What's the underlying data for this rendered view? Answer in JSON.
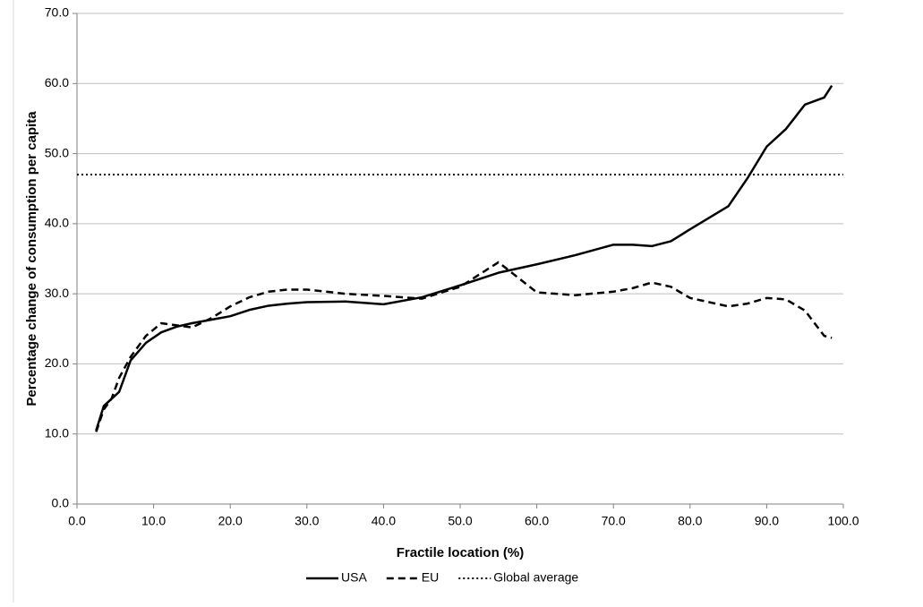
{
  "chart_data": {
    "type": "line",
    "x_label": "Fractile location (%)",
    "y_label": "Percentage change of consumption per capita",
    "xlim": [
      0,
      100
    ],
    "xticks": [
      {
        "value": 0,
        "label": "0.0"
      },
      {
        "value": 10,
        "label": "10.0"
      },
      {
        "value": 20,
        "label": "20.0"
      },
      {
        "value": 30,
        "label": "30.0"
      },
      {
        "value": 40,
        "label": "40.0"
      },
      {
        "value": 50,
        "label": "50.0"
      },
      {
        "value": 60,
        "label": "60.0"
      },
      {
        "value": 70,
        "label": "70.0"
      },
      {
        "value": 80,
        "label": "80.0"
      },
      {
        "value": 90,
        "label": "90.0"
      },
      {
        "value": 100,
        "label": "100.0"
      }
    ],
    "ylim": [
      0,
      70
    ],
    "yticks": [
      {
        "value": 0,
        "label": "0.0"
      },
      {
        "value": 10,
        "label": "10.0"
      },
      {
        "value": 20,
        "label": "20.0"
      },
      {
        "value": 30,
        "label": "30.0"
      },
      {
        "value": 40,
        "label": "40.0"
      },
      {
        "value": 50,
        "label": "50.0"
      },
      {
        "value": 60,
        "label": "60.0"
      },
      {
        "value": 70,
        "label": "70.0"
      }
    ],
    "grid": true,
    "legend": "bottom",
    "series": [
      {
        "name": "USA",
        "color": "#000000",
        "dash": "solid",
        "x": [
          2.5,
          3.5,
          4.5,
          5.5,
          7,
          9,
          11,
          13,
          15,
          17.5,
          20,
          22.5,
          25,
          27.5,
          30,
          35,
          40,
          45,
          50,
          55,
          60,
          65,
          70,
          72.5,
          75,
          77.5,
          80,
          85,
          87.5,
          90,
          92.5,
          95,
          97.5,
          98.5
        ],
        "values": [
          10.5,
          14,
          15,
          16,
          20.5,
          23,
          24.5,
          25.3,
          25.8,
          26.3,
          26.8,
          27.7,
          28.3,
          28.6,
          28.8,
          28.9,
          28.5,
          29.5,
          31.2,
          33,
          34.2,
          35.5,
          37,
          37,
          36.8,
          37.5,
          39.2,
          42.5,
          46.5,
          51,
          53.5,
          57,
          58,
          59.7
        ]
      },
      {
        "name": "EU",
        "color": "#000000",
        "dash": "dashed",
        "x": [
          2.5,
          3.5,
          4.5,
          5.5,
          7,
          9,
          11,
          13,
          15,
          17.5,
          20,
          22.5,
          25,
          27.5,
          30,
          35,
          40,
          45,
          50,
          55,
          60,
          65,
          70,
          72.5,
          75,
          77.5,
          80,
          85,
          87.5,
          90,
          92.5,
          95,
          97.5,
          98.5
        ],
        "values": [
          10.3,
          13.5,
          15,
          18,
          21,
          24,
          25.8,
          25.5,
          25.2,
          26.5,
          28.2,
          29.5,
          30.3,
          30.6,
          30.6,
          30,
          29.7,
          29.3,
          31,
          34.5,
          30.2,
          29.8,
          30.3,
          30.8,
          31.6,
          31,
          29.4,
          28.2,
          28.6,
          29.4,
          29.2,
          27.6,
          24,
          23.7
        ]
      },
      {
        "name": "Global average",
        "color": "#000000",
        "dash": "dotted",
        "x": [
          0,
          100
        ],
        "values": [
          47,
          47
        ]
      }
    ]
  }
}
